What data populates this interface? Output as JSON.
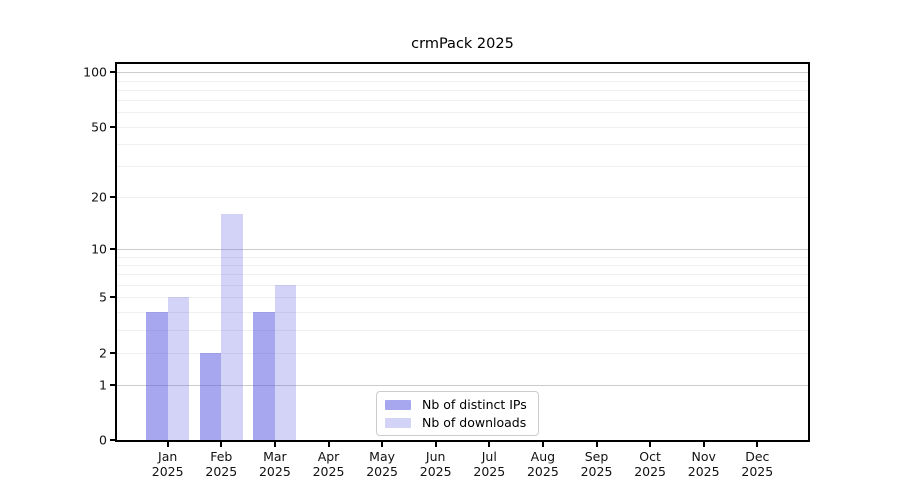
{
  "title": "crmPack 2025",
  "chart_data": {
    "type": "bar",
    "title": "crmPack 2025",
    "xlabel": "",
    "ylabel": "",
    "yscale": "log1p",
    "ylim": [
      0,
      111
    ],
    "yticks": [
      0,
      1,
      2,
      5,
      10,
      20,
      50,
      100
    ],
    "grid": {
      "major": [
        1,
        10,
        100
      ],
      "minor": [
        2,
        3,
        4,
        5,
        6,
        7,
        8,
        9,
        20,
        30,
        40,
        50,
        60,
        70,
        80,
        90
      ]
    },
    "categories": [
      {
        "month": "Jan",
        "year": "2025"
      },
      {
        "month": "Feb",
        "year": "2025"
      },
      {
        "month": "Mar",
        "year": "2025"
      },
      {
        "month": "Apr",
        "year": "2025"
      },
      {
        "month": "May",
        "year": "2025"
      },
      {
        "month": "Jun",
        "year": "2025"
      },
      {
        "month": "Jul",
        "year": "2025"
      },
      {
        "month": "Aug",
        "year": "2025"
      },
      {
        "month": "Sep",
        "year": "2025"
      },
      {
        "month": "Oct",
        "year": "2025"
      },
      {
        "month": "Nov",
        "year": "2025"
      },
      {
        "month": "Dec",
        "year": "2025"
      }
    ],
    "series": [
      {
        "name": "Nb of distinct IPs",
        "color": "rgba(80,80,225,0.5)",
        "values": [
          4,
          2,
          4,
          0,
          0,
          0,
          0,
          0,
          0,
          0,
          0,
          0
        ]
      },
      {
        "name": "Nb of downloads",
        "color": "rgba(80,80,225,0.25)",
        "values": [
          5,
          16,
          6,
          0,
          0,
          0,
          0,
          0,
          0,
          0,
          0,
          0
        ]
      }
    ],
    "legend_position": "lower center"
  }
}
